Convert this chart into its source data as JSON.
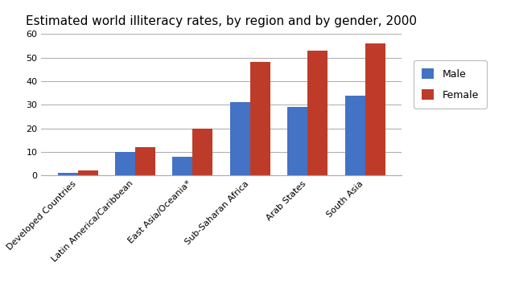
{
  "title": "Estimated world illiteracy rates, by region and by gender, 2000",
  "categories": [
    "Developed Countries",
    "Latin America/Caribbean",
    "East Asia/Oceania*",
    "Sub-Saharan Africa",
    "Arab States",
    "South Asia"
  ],
  "male_values": [
    1,
    10,
    8,
    31,
    29,
    34
  ],
  "female_values": [
    2,
    12,
    20,
    48,
    53,
    56
  ],
  "male_color": "#4472C4",
  "female_color": "#BE3B2A",
  "ylim": [
    0,
    60
  ],
  "yticks": [
    0,
    10,
    20,
    30,
    40,
    50,
    60
  ],
  "legend_labels": [
    "Male",
    "Female"
  ],
  "bar_width": 0.35,
  "title_fontsize": 11,
  "tick_fontsize": 8,
  "label_fontsize": 9,
  "legend_fontsize": 9,
  "background_color": "#FFFFFF"
}
